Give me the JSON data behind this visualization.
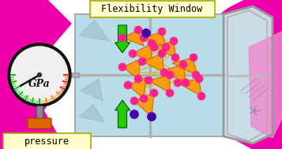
{
  "title": "Flexibility Window",
  "pressure_label": "pressure",
  "gpa_label": "GPa",
  "bg_color": "#ffffff",
  "magenta_color": "#ee00aa",
  "light_magenta": "#ff66cc",
  "green_arrow_color": "#22cc00",
  "orange_color": "#ff9900",
  "pink_node_color": "#ff2288",
  "purple_node_color": "#4400aa",
  "window_bg": "#b8dde8",
  "label_bg": "#ffffcc",
  "gauge_face": "#f0f0f0",
  "stem_color": "#888888",
  "orange_base": "#dd6600",
  "door_bg": "#cce0ee",
  "door_right_pink": "#ddaacc"
}
